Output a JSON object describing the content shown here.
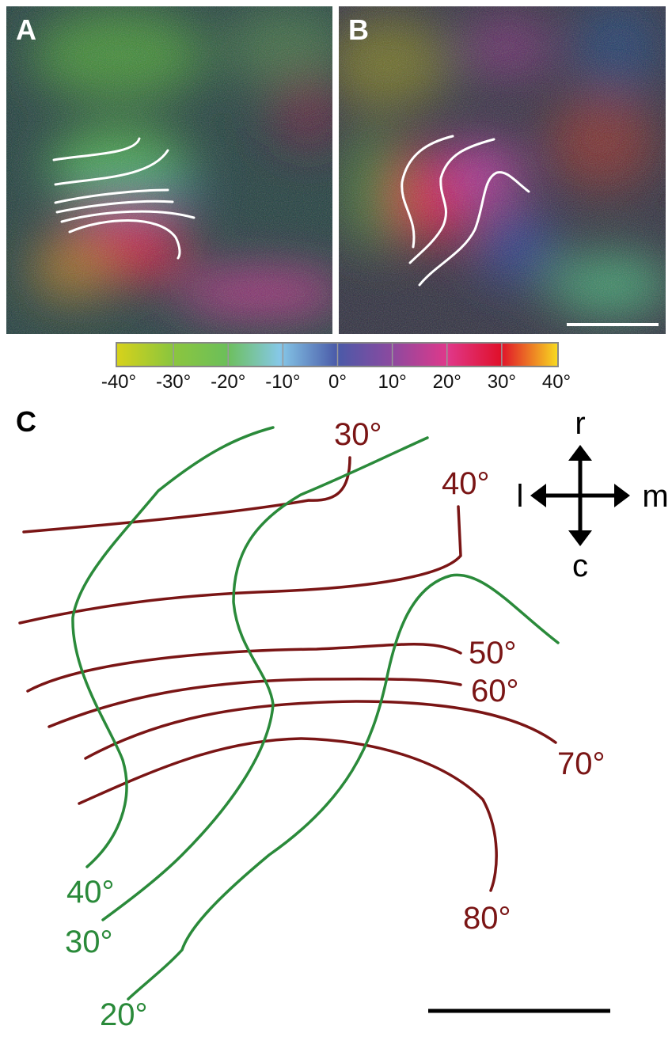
{
  "panels": {
    "a": {
      "label": "A"
    },
    "b": {
      "label": "B"
    },
    "colorbar": {
      "labels": [
        "-40°",
        "-30°",
        "-20°",
        "-10°",
        "0°",
        "10°",
        "20°",
        "30°",
        "40°"
      ]
    },
    "c": {
      "label": "C",
      "elevation_contours": [
        "30°",
        "40°",
        "50°",
        "60°",
        "70°",
        "80°"
      ],
      "azimuth_contours": [
        "40°",
        "30°",
        "20°"
      ],
      "orientation": {
        "rostral": "r",
        "lateral": "l",
        "medial": "m",
        "caudal": "c"
      }
    }
  }
}
